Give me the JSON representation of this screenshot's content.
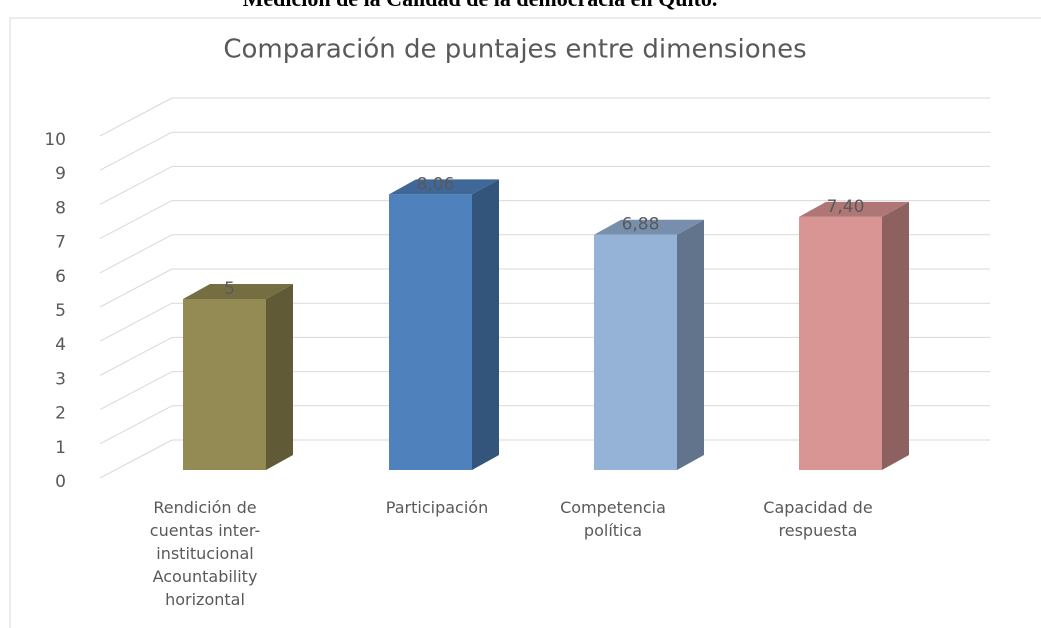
{
  "heading": "Medición de la Calidad de la democracia en Quito.",
  "chart_data": {
    "type": "bar3d",
    "title": "Comparación de puntajes entre dimensiones",
    "categories": [
      "Rendición de\ncuentas inter-\ninstitucional\nAcountability\nhorizontal",
      "Participación",
      "Competencia\npolítica",
      "Capacidad de\nrespuesta"
    ],
    "values": [
      5,
      8.06,
      6.88,
      7.4
    ],
    "value_labels": [
      "5",
      "8,06",
      "6,88",
      "7,40"
    ],
    "colors": [
      "#948a54",
      "#4f81bd",
      "#95b3d7",
      "#d99594"
    ],
    "ylim": [
      0,
      10
    ],
    "yticks": [
      0,
      1,
      2,
      3,
      4,
      5,
      6,
      7,
      8,
      9,
      10
    ],
    "grid": true
  }
}
